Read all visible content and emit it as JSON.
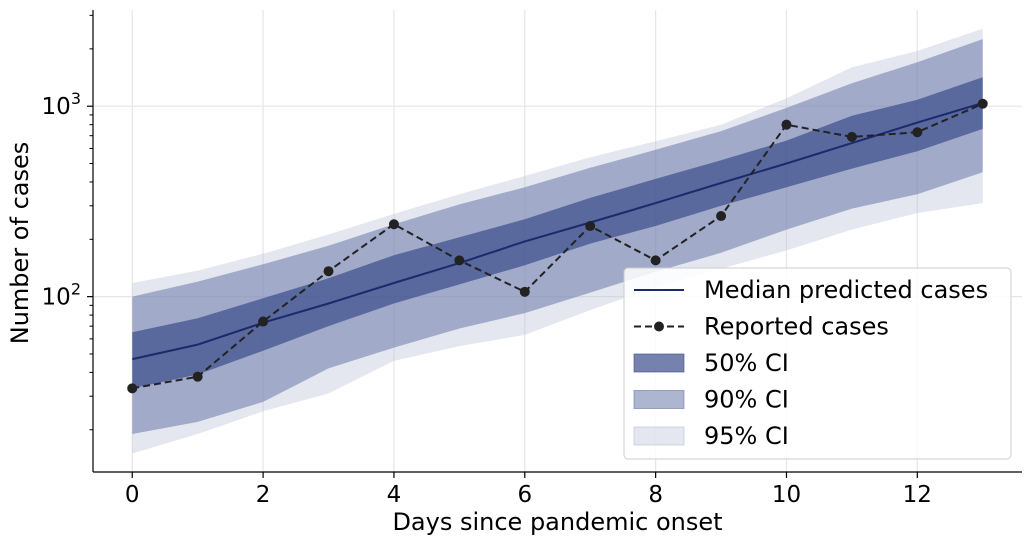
{
  "chart_data": {
    "type": "line",
    "title": "",
    "xlabel": "Days since pandemic onset",
    "ylabel": "Number of cases",
    "x": [
      0,
      1,
      2,
      3,
      4,
      5,
      6,
      7,
      8,
      9,
      10,
      11,
      12,
      13
    ],
    "xlim": [
      -0.6,
      13.6
    ],
    "ylim": [
      12,
      3200
    ],
    "yscale": "log",
    "x_ticks": [
      0,
      2,
      4,
      6,
      8,
      10,
      12
    ],
    "y_ticks": [
      {
        "value": 100,
        "base": "10",
        "exp": "2"
      },
      {
        "value": 1000,
        "base": "10",
        "exp": "3"
      }
    ],
    "grid": true,
    "legend_position": "lower-right",
    "colors": {
      "median": "#1b2a6b",
      "reported": "#222222",
      "ci50": "#3a4d8c",
      "ci90": "#6a78aa",
      "ci95": "#b7bfd6"
    },
    "series": [
      {
        "name": "Median predicted cases",
        "kind": "median",
        "values": [
          47,
          56,
          73,
          92,
          118,
          150,
          195,
          245,
          310,
          395,
          500,
          640,
          820,
          1040
        ]
      },
      {
        "name": "Reported cases",
        "kind": "reported",
        "values": [
          33,
          38,
          74,
          136,
          240,
          155,
          106,
          235,
          155,
          265,
          800,
          690,
          730,
          1030
        ]
      }
    ],
    "bands": [
      {
        "name": "95% CI",
        "kind": "ci95",
        "lower": [
          15,
          19,
          25,
          31,
          46,
          55,
          63,
          85,
          112,
          140,
          175,
          225,
          275,
          310
        ],
        "upper": [
          118,
          137,
          168,
          212,
          272,
          345,
          430,
          540,
          655,
          800,
          1100,
          1600,
          1950,
          2550
        ]
      },
      {
        "name": "90% CI",
        "kind": "ci90",
        "lower": [
          19,
          22,
          28,
          42,
          54,
          68,
          82,
          105,
          135,
          170,
          225,
          290,
          345,
          450
        ],
        "upper": [
          100,
          120,
          148,
          185,
          240,
          305,
          375,
          475,
          590,
          740,
          980,
          1320,
          1700,
          2250
        ]
      },
      {
        "name": "50% CI",
        "kind": "ci50",
        "lower": [
          33,
          39,
          52,
          70,
          92,
          116,
          146,
          190,
          235,
          300,
          375,
          470,
          580,
          760
        ],
        "upper": [
          65,
          77,
          98,
          125,
          165,
          205,
          255,
          330,
          415,
          520,
          660,
          890,
          1080,
          1420
        ]
      }
    ],
    "legend": [
      {
        "label": "Median predicted cases",
        "kind": "median"
      },
      {
        "label": "Reported cases",
        "kind": "reported"
      },
      {
        "label": "50% CI",
        "kind": "ci50"
      },
      {
        "label": "90% CI",
        "kind": "ci90"
      },
      {
        "label": "95% CI",
        "kind": "ci95"
      }
    ]
  }
}
